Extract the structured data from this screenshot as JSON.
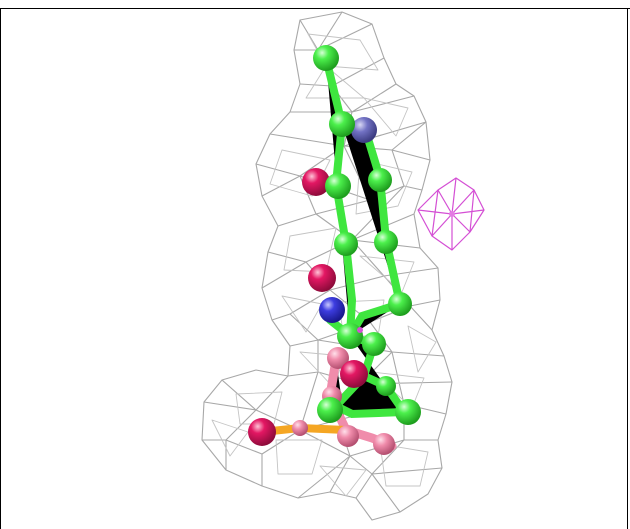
{
  "image": {
    "subject": "electron-density-mesh-with-ligand",
    "colors": {
      "mesh": "#a9a9a9",
      "secondary_mesh": "#d94fd9",
      "carbon": "#39e639",
      "oxygen": "#e0145f",
      "nitrogen": "#3d3dd9",
      "pink_carbon": "#f28aa8",
      "orange_bond": "#f5a623",
      "background": "#ffffff",
      "frame": "#000000"
    }
  }
}
